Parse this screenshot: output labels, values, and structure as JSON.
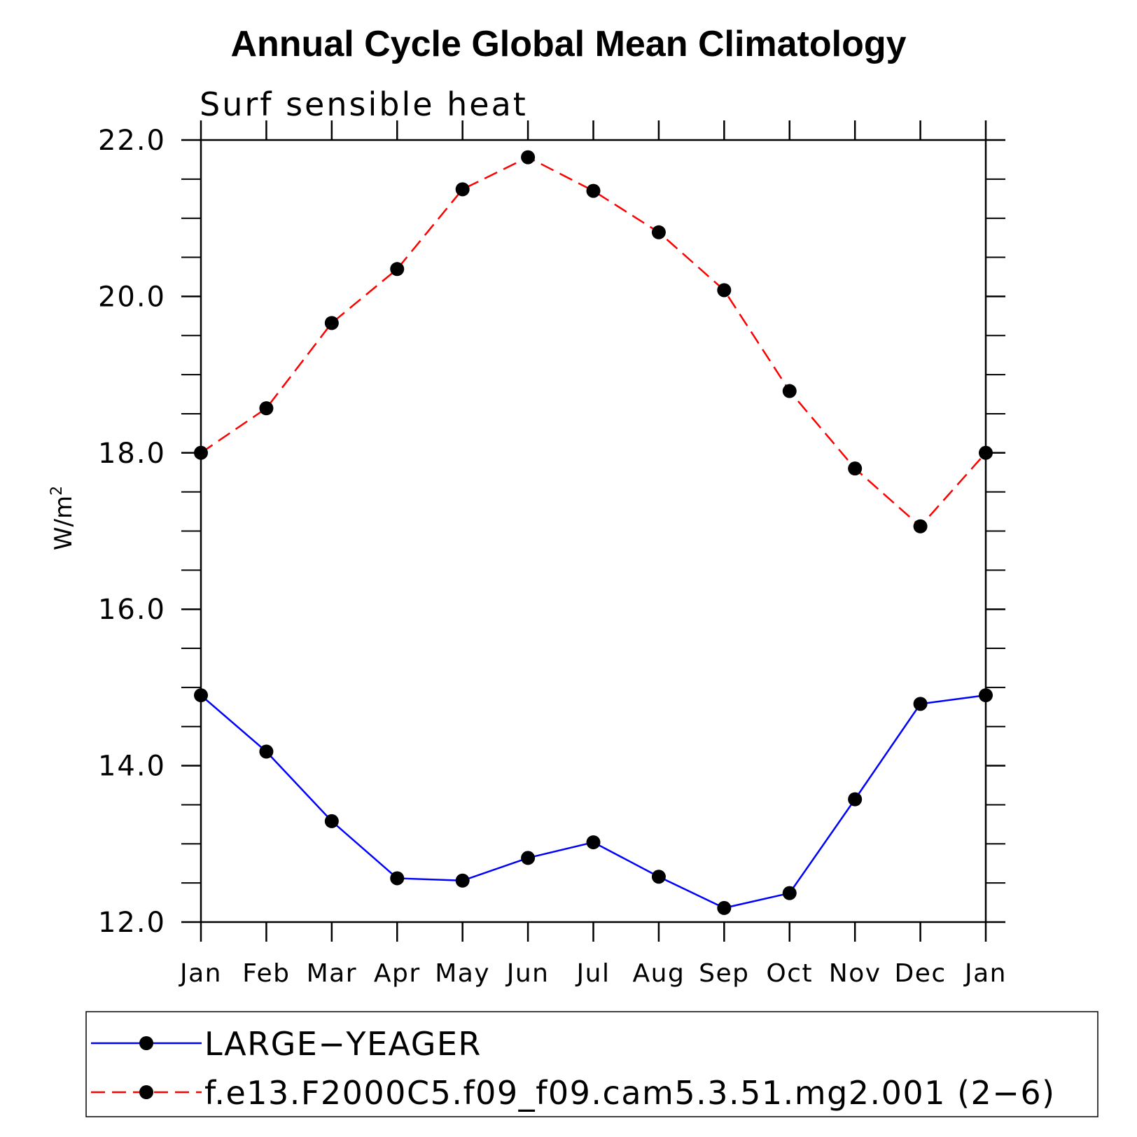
{
  "chart_data": {
    "type": "line",
    "title": "Annual Cycle Global Mean Climatology",
    "subtitle": "Surf sensible heat",
    "ylabel": "W/m",
    "ylabel_superscript": "2",
    "xlabel": "",
    "ylim": [
      12.0,
      22.0
    ],
    "yticks_major": [
      12.0,
      14.0,
      16.0,
      18.0,
      20.0,
      22.0
    ],
    "ytick_labels": [
      "12.0",
      "14.0",
      "16.0",
      "18.0",
      "20.0",
      "22.0"
    ],
    "yticks_minor_step": 0.5,
    "categories": [
      "Jan",
      "Feb",
      "Mar",
      "Apr",
      "May",
      "Jun",
      "Jul",
      "Aug",
      "Sep",
      "Oct",
      "Nov",
      "Dec",
      "Jan"
    ],
    "grid": false,
    "legend_position": "bottom",
    "series": [
      {
        "name": "LARGE−YEAGER",
        "color": "#0000ff",
        "line_style": "solid",
        "marker": "filled-circle",
        "marker_color": "#000000",
        "values": [
          14.9,
          14.18,
          13.29,
          12.56,
          12.53,
          12.82,
          13.02,
          12.58,
          12.18,
          12.37,
          13.57,
          14.79,
          14.9
        ]
      },
      {
        "name": "f.e13.F2000C5.f09_f09.cam5.3.51.mg2.001 (2−6)",
        "color": "#ff0000",
        "line_style": "dashed",
        "marker": "filled-circle",
        "marker_color": "#000000",
        "values": [
          18.0,
          18.57,
          19.66,
          20.35,
          21.37,
          21.78,
          21.35,
          20.82,
          20.08,
          18.79,
          17.8,
          17.06,
          18.0
        ]
      }
    ]
  }
}
